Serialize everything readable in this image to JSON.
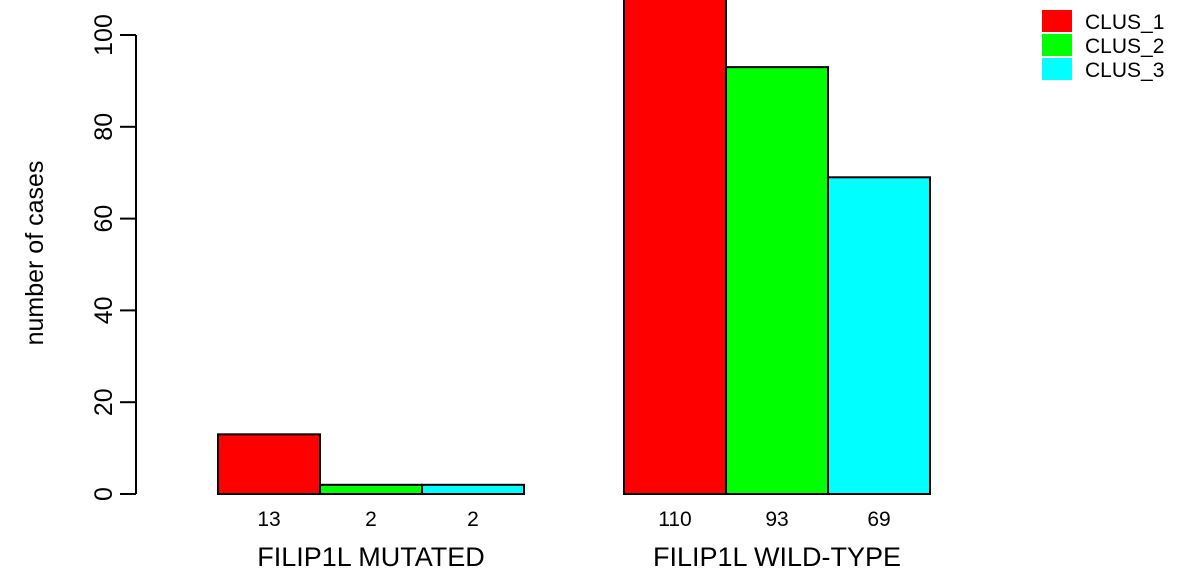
{
  "chart_data": {
    "type": "bar",
    "title": "",
    "xlabel": "",
    "ylabel": "number of cases",
    "ylim": [
      0,
      110
    ],
    "yticks": [
      0,
      20,
      40,
      60,
      80,
      100
    ],
    "grid": false,
    "legend_position": "top-right",
    "groups": [
      "FILIP1L MUTATED",
      "FILIP1L WILD-TYPE"
    ],
    "series": [
      {
        "name": "CLUS_1",
        "color": "#ff0000",
        "values": [
          13,
          110
        ]
      },
      {
        "name": "CLUS_2",
        "color": "#00ff00",
        "values": [
          2,
          93
        ]
      },
      {
        "name": "CLUS_3",
        "color": "#00ffff",
        "values": [
          2,
          69
        ]
      }
    ],
    "count_labels": [
      [
        "13",
        "2",
        "2"
      ],
      [
        "110",
        "93",
        "69"
      ]
    ]
  }
}
